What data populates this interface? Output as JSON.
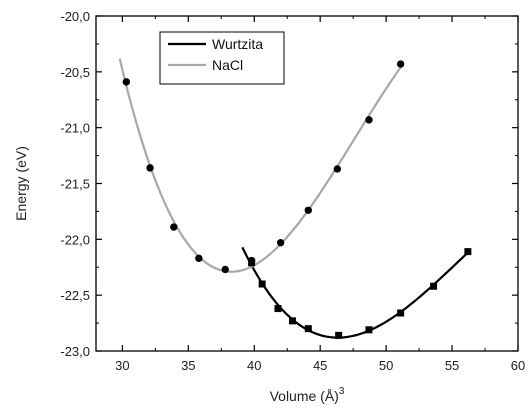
{
  "chart_data": {
    "type": "scatter",
    "xlabel": "Volume (Å)",
    "xlabel_superscript": "3",
    "ylabel": "Energy (eV)",
    "xlim": [
      28,
      60
    ],
    "ylim": [
      -23.0,
      -20.0
    ],
    "x_ticks": [
      30,
      35,
      40,
      45,
      50,
      55,
      60
    ],
    "x_tick_labels": [
      "30",
      "35",
      "40",
      "45",
      "50",
      "55",
      "60"
    ],
    "y_ticks": [
      -20.0,
      -20.5,
      -21.0,
      -21.5,
      -22.0,
      -22.5,
      -23.0
    ],
    "y_tick_labels": [
      "-20,0",
      "-20,5",
      "-21,0",
      "-21,5",
      "-22,0",
      "-22,5",
      "-23,0"
    ],
    "grid": false,
    "legend_position": "top-left",
    "series": [
      {
        "name": "Wurtzita",
        "color": "#000000",
        "marker": "square",
        "points": [
          {
            "x": 39.8,
            "y": -22.21
          },
          {
            "x": 40.6,
            "y": -22.4
          },
          {
            "x": 41.8,
            "y": -22.62
          },
          {
            "x": 42.9,
            "y": -22.73
          },
          {
            "x": 44.1,
            "y": -22.8
          },
          {
            "x": 46.4,
            "y": -22.86
          },
          {
            "x": 48.7,
            "y": -22.81
          },
          {
            "x": 51.1,
            "y": -22.66
          },
          {
            "x": 53.6,
            "y": -22.42
          },
          {
            "x": 56.2,
            "y": -22.11
          }
        ],
        "fit_range": [
          39.1,
          56.2
        ]
      },
      {
        "name": "NaCl",
        "color": "#a8a8a8",
        "marker_color": "#000000",
        "marker": "circle",
        "points": [
          {
            "x": 30.3,
            "y": -20.59
          },
          {
            "x": 32.1,
            "y": -21.36
          },
          {
            "x": 33.9,
            "y": -21.89
          },
          {
            "x": 35.8,
            "y": -22.17
          },
          {
            "x": 37.8,
            "y": -22.27
          },
          {
            "x": 39.8,
            "y": -22.19
          },
          {
            "x": 42.0,
            "y": -22.03
          },
          {
            "x": 44.1,
            "y": -21.74
          },
          {
            "x": 46.3,
            "y": -21.37
          },
          {
            "x": 48.7,
            "y": -20.93
          },
          {
            "x": 51.1,
            "y": -20.43
          }
        ],
        "fit_range": [
          29.8,
          51.2
        ]
      }
    ]
  }
}
